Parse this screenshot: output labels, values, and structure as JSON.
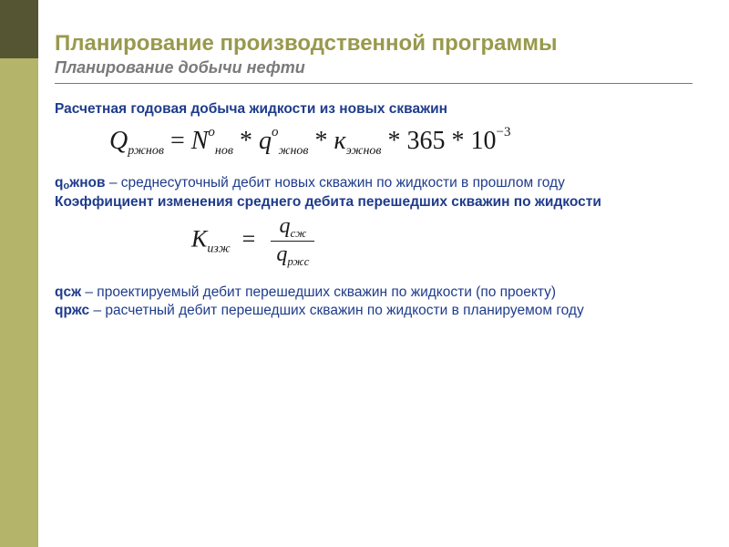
{
  "colors": {
    "accent_olive": "#99994d",
    "bar_top": "#555533",
    "bar_bottom": "#b4b46a",
    "subtitle_gray": "#7a7a7a",
    "hr_gray": "#7a7a7a",
    "body_blue": "#1f3c8c",
    "text_black": "#1a1a1a",
    "page_bg": "#ffffff"
  },
  "title": "Планирование производственной программы",
  "subtitle": "Планирование добычи нефти",
  "lead1": "Расчетная годовая добыча жидкости из новых скважин",
  "formula1": {
    "lhs_var": "Q",
    "lhs_sub": "ржнов",
    "terms": [
      {
        "var": "N",
        "sup": "о",
        "sub": "нов"
      },
      {
        "var": "q",
        "sup": "о",
        "sub": "жнов"
      },
      {
        "var": "к",
        "sup": "",
        "sub": "эжнов"
      }
    ],
    "constants": "365",
    "exp_base": "10",
    "exp_power": "−3"
  },
  "def1": {
    "term_prefix": "q",
    "term_sub": "о",
    "term_suffix": "жнов",
    "text": " – среднесуточный дебит новых скважин по жидкости в прошлом году"
  },
  "lead2": "Коэффициент изменения среднего дебита перешедших скважин по жидкости",
  "formula2": {
    "lhs_var": "K",
    "lhs_sub": "изж",
    "num_var": "q",
    "num_sub": "сж",
    "den_var": "q",
    "den_sub": "ржc"
  },
  "def2": {
    "term": "qсж",
    "text": " – проектируемый дебит перешедших скважин по жидкости (по проекту)"
  },
  "def3": {
    "term": "qржс",
    "text": " – расчетный дебит перешедших скважин по жидкости в планируемом году"
  }
}
